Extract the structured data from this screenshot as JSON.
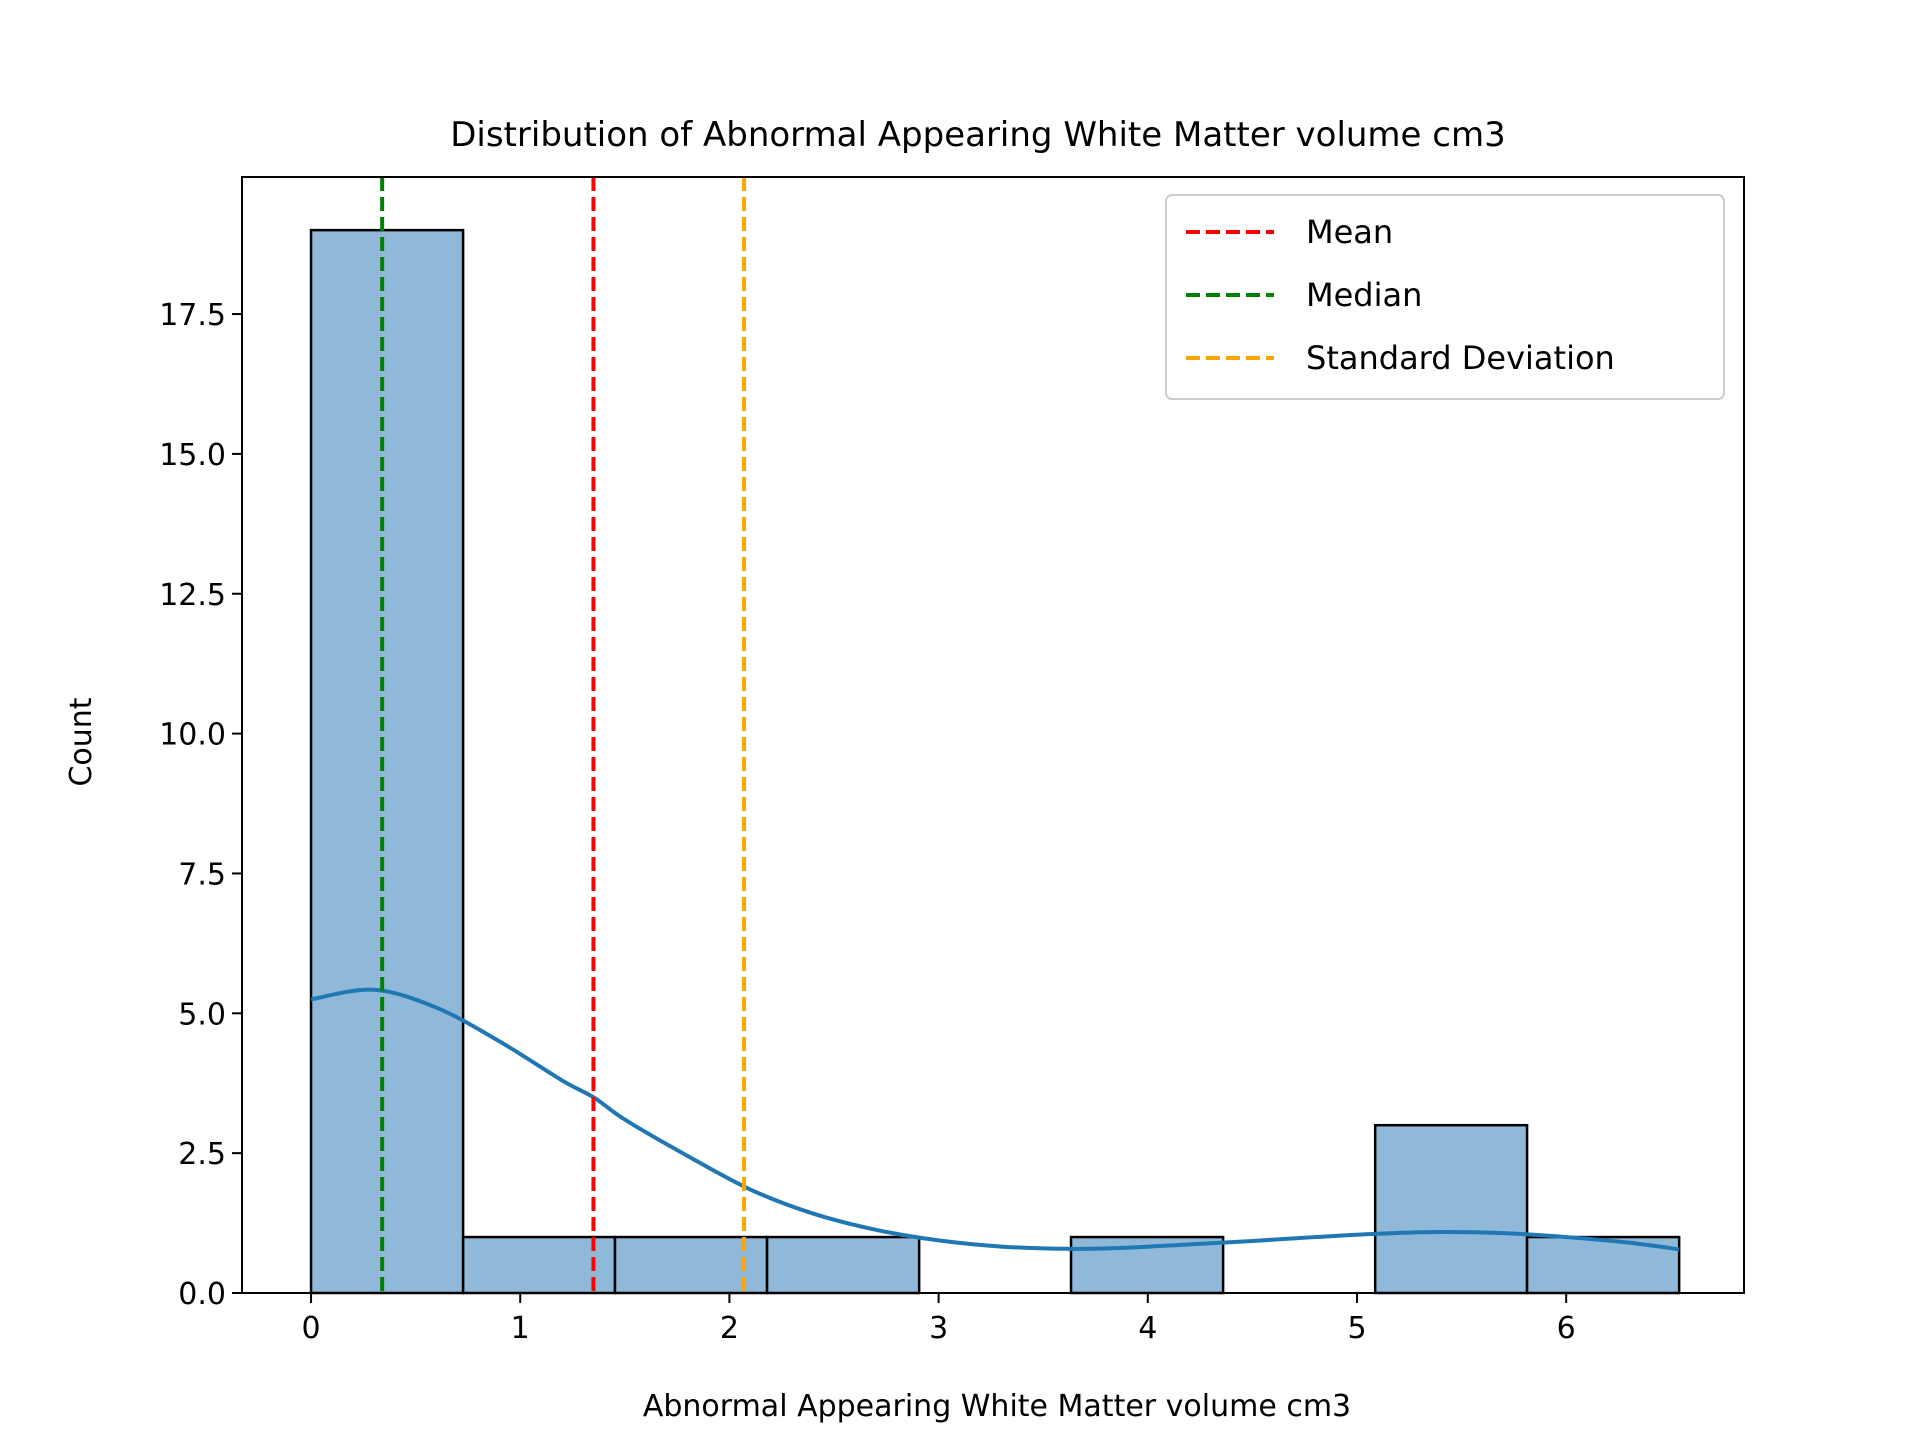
{
  "chart_data": {
    "type": "bar",
    "title": "Distribution of Abnormal Appearing White Matter volume cm3",
    "xlabel": "Abnormal Appearing White Matter volume cm3",
    "ylabel": "Count",
    "xlim": [
      -0.33,
      6.85
    ],
    "ylim": [
      0,
      19.95
    ],
    "x_ticks": [
      0,
      1,
      2,
      3,
      4,
      5,
      6
    ],
    "x_tick_labels": [
      "0",
      "1",
      "2",
      "3",
      "4",
      "5",
      "6"
    ],
    "y_ticks": [
      0,
      2.5,
      5,
      7.5,
      10,
      12.5,
      15,
      17.5
    ],
    "y_tick_labels": [
      "0.0",
      "2.5",
      "5.0",
      "7.5",
      "10.0",
      "12.5",
      "15.0",
      "17.5"
    ],
    "bins": [
      {
        "x0": 0.0,
        "x1": 0.727,
        "count": 19
      },
      {
        "x0": 0.727,
        "x1": 1.453,
        "count": 1
      },
      {
        "x0": 1.453,
        "x1": 2.18,
        "count": 1
      },
      {
        "x0": 2.18,
        "x1": 2.907,
        "count": 1
      },
      {
        "x0": 2.907,
        "x1": 3.633,
        "count": 0
      },
      {
        "x0": 3.633,
        "x1": 4.36,
        "count": 1
      },
      {
        "x0": 4.36,
        "x1": 5.087,
        "count": 0
      },
      {
        "x0": 5.087,
        "x1": 5.813,
        "count": 3
      },
      {
        "x0": 5.813,
        "x1": 6.54,
        "count": 1
      }
    ],
    "kde": {
      "x": [
        0.0,
        0.3,
        0.6,
        0.9,
        1.2,
        1.35,
        1.5,
        1.8,
        2.1,
        2.4,
        2.7,
        3.0,
        3.3,
        3.6,
        3.9,
        4.2,
        4.5,
        4.8,
        5.1,
        5.4,
        5.7,
        6.0,
        6.3,
        6.54
      ],
      "y": [
        5.25,
        5.42,
        5.1,
        4.5,
        3.8,
        3.5,
        3.1,
        2.45,
        1.85,
        1.42,
        1.13,
        0.94,
        0.83,
        0.79,
        0.81,
        0.87,
        0.93,
        1.0,
        1.06,
        1.09,
        1.07,
        1.0,
        0.9,
        0.78
      ]
    },
    "vlines": [
      {
        "label": "Mean",
        "x": 1.35,
        "color": "#ff0000"
      },
      {
        "label": "Median",
        "x": 0.34,
        "color": "#008000"
      },
      {
        "label": "Standard Deviation",
        "x": 2.07,
        "color": "#ffa500"
      }
    ],
    "colors": {
      "bar_fill": "#8fb8d9",
      "bar_edge": "#000000",
      "kde_line": "#1f77b4"
    },
    "legend_position": "top-right",
    "grid": false
  }
}
